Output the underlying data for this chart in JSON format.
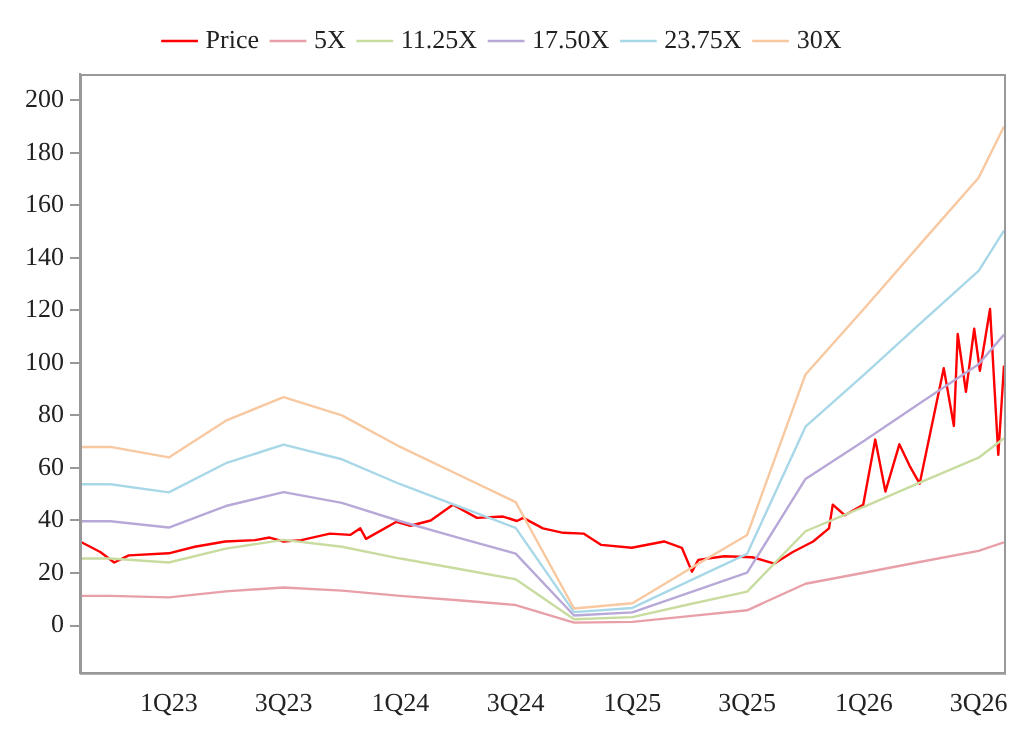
{
  "chart_data": {
    "type": "line",
    "xlim": [
      "2022-08-14",
      "2026-08-10"
    ],
    "ylim": [
      -18,
      210
    ],
    "xticks": [
      {
        "value": "2023-01-01",
        "label": "1Q23"
      },
      {
        "value": "2023-07-01",
        "label": "3Q23"
      },
      {
        "value": "2024-01-01",
        "label": "1Q24"
      },
      {
        "value": "2024-07-01",
        "label": "3Q24"
      },
      {
        "value": "2025-01-01",
        "label": "1Q25"
      },
      {
        "value": "2025-07-01",
        "label": "3Q25"
      },
      {
        "value": "2026-01-01",
        "label": "1Q26"
      },
      {
        "value": "2026-07-01",
        "label": "3Q26"
      }
    ],
    "yticks": [
      0,
      20,
      40,
      60,
      80,
      100,
      120,
      140,
      160,
      180,
      200
    ],
    "grid": false,
    "legend": "top",
    "marker": "none",
    "line_style": "solid",
    "series": [
      {
        "name": "Price",
        "color": "#ff0000",
        "x": [
          "2022-08-14",
          "2022-09-15",
          "2022-10-07",
          "2022-10-30",
          "2023-01-01",
          "2023-02-11",
          "2023-03-31",
          "2023-05-17",
          "2023-06-09",
          "2023-07-01",
          "2023-07-29",
          "2023-09-12",
          "2023-10-14",
          "2023-10-30",
          "2023-11-08",
          "2023-12-26",
          "2024-01-17",
          "2024-02-18",
          "2024-03-24",
          "2024-05-01",
          "2024-06-11",
          "2024-07-03",
          "2024-07-13",
          "2024-08-13",
          "2024-09-14",
          "2024-10-16",
          "2024-11-13",
          "2024-12-31",
          "2025-02-20",
          "2025-03-20",
          "2025-04-05",
          "2025-04-15",
          "2025-05-26",
          "2025-07-09",
          "2025-08-13",
          "2025-09-11",
          "2025-10-13",
          "2025-11-07",
          "2025-11-13",
          "2025-12-02",
          "2025-12-31",
          "2026-01-19",
          "2026-02-04",
          "2026-02-26",
          "2026-03-14",
          "2026-03-30",
          "2026-05-07",
          "2026-05-23",
          "2026-05-29",
          "2026-06-11",
          "2026-06-24",
          "2026-07-03",
          "2026-07-19",
          "2026-08-01",
          "2026-08-10"
        ],
        "values": [
          32,
          28,
          24,
          26.7,
          27.5,
          30,
          32,
          32.5,
          33.5,
          32,
          32.5,
          35,
          34.5,
          37,
          33,
          39.5,
          38,
          40,
          46,
          41,
          41.5,
          39.8,
          41,
          37,
          35.3,
          35,
          30.7,
          29.6,
          32,
          29.6,
          20.5,
          25,
          26.4,
          26,
          23.6,
          28,
          32,
          37,
          46,
          42,
          46,
          70.8,
          51,
          69,
          60.9,
          54,
          98,
          76,
          111,
          89,
          113,
          97,
          120.5,
          65,
          99
        ]
      },
      {
        "name": "5X",
        "color": "#e8a0a8",
        "x": [
          "2022-08-14",
          "2022-10-01",
          "2023-01-01",
          "2023-04-01",
          "2023-07-01",
          "2023-10-01",
          "2024-01-01",
          "2024-04-01",
          "2024-07-01",
          "2024-10-01",
          "2025-01-01",
          "2025-04-01",
          "2025-07-01",
          "2025-10-01",
          "2026-01-01",
          "2026-04-01",
          "2026-07-01",
          "2026-08-10"
        ],
        "values": [
          11.3,
          11.3,
          10.7,
          13,
          14.5,
          13.3,
          11.3,
          9.6,
          7.8,
          1.1,
          1.4,
          3.6,
          5.8,
          15.9,
          20.1,
          24.3,
          28.4,
          31.7
        ]
      },
      {
        "name": "11.25X",
        "color": "#c8dca0",
        "x": [
          "2022-08-14",
          "2022-10-01",
          "2023-01-01",
          "2023-04-01",
          "2023-07-01",
          "2023-10-01",
          "2024-01-01",
          "2024-04-01",
          "2024-07-01",
          "2024-10-01",
          "2025-01-01",
          "2025-04-01",
          "2025-07-01",
          "2025-10-01",
          "2026-01-01",
          "2026-04-01",
          "2026-07-01",
          "2026-08-10"
        ],
        "values": [
          25.5,
          25.5,
          24,
          29.3,
          32.6,
          30,
          25.5,
          21.6,
          17.6,
          2.4,
          3.2,
          8.1,
          12.9,
          35.9,
          45.2,
          54.6,
          63.9,
          71.3
        ]
      },
      {
        "name": "17.50X",
        "color": "#b8a8d8",
        "x": [
          "2022-08-14",
          "2022-10-01",
          "2023-01-01",
          "2023-04-01",
          "2023-07-01",
          "2023-10-01",
          "2024-01-01",
          "2024-04-01",
          "2024-07-01",
          "2024-10-01",
          "2025-01-01",
          "2025-04-01",
          "2025-07-01",
          "2025-10-01",
          "2026-01-01",
          "2026-04-01",
          "2026-07-01",
          "2026-08-10"
        ],
        "values": [
          39.7,
          39.7,
          37.3,
          45.5,
          50.8,
          46.7,
          39.7,
          33.5,
          27.4,
          3.8,
          5,
          12.5,
          20.1,
          55.8,
          70.3,
          84.9,
          99.5,
          110.8
        ]
      },
      {
        "name": "23.75X",
        "color": "#a8d8e8",
        "x": [
          "2022-08-14",
          "2022-10-01",
          "2023-01-01",
          "2023-04-01",
          "2023-07-01",
          "2023-10-01",
          "2024-01-01",
          "2024-04-01",
          "2024-07-01",
          "2024-10-01",
          "2025-01-01",
          "2025-04-01",
          "2025-07-01",
          "2025-10-01",
          "2026-01-01",
          "2026-04-01",
          "2026-07-01",
          "2026-08-10"
        ],
        "values": [
          53.8,
          53.8,
          50.7,
          61.8,
          68.9,
          63.3,
          53.8,
          45.5,
          37.2,
          5.1,
          6.7,
          17,
          27.3,
          75.7,
          95.4,
          115.2,
          135,
          150.4
        ]
      },
      {
        "name": "30X",
        "color": "#f8c8a0",
        "x": [
          "2022-08-14",
          "2022-10-01",
          "2023-01-01",
          "2023-04-01",
          "2023-07-01",
          "2023-10-01",
          "2024-01-01",
          "2024-04-01",
          "2024-07-01",
          "2024-10-01",
          "2025-01-01",
          "2025-04-01",
          "2025-07-01",
          "2025-10-01",
          "2026-01-01",
          "2026-04-01",
          "2026-07-01",
          "2026-08-10"
        ],
        "values": [
          68,
          68,
          64,
          78,
          87,
          80,
          68,
          57.5,
          47,
          6.5,
          8.5,
          21.5,
          34.5,
          95.6,
          120.5,
          145.5,
          170.5,
          190
        ]
      }
    ]
  }
}
